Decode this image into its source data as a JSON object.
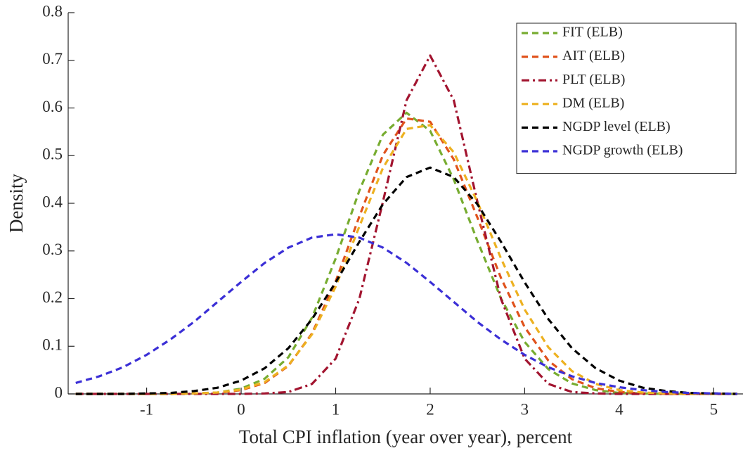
{
  "chart_data": {
    "type": "line",
    "xlabel": "Total CPI inflation (year over year), percent",
    "ylabel": "Density",
    "x": [
      -1.75,
      -1.5,
      -1.25,
      -1,
      -0.75,
      -0.5,
      -0.25,
      0,
      0.25,
      0.5,
      0.75,
      1,
      1.25,
      1.5,
      1.75,
      2,
      2.25,
      2.5,
      2.75,
      3,
      3.25,
      3.5,
      3.75,
      4,
      4.25,
      4.5,
      4.75,
      5,
      5.25
    ],
    "series": [
      {
        "name": "FIT (ELB)",
        "color": "#77ac30",
        "dash": "dashed",
        "values": [
          0,
          0,
          0,
          0,
          0,
          0.001,
          0.003,
          0.011,
          0.032,
          0.077,
          0.16,
          0.284,
          0.426,
          0.544,
          0.59,
          0.552,
          0.45,
          0.321,
          0.2,
          0.109,
          0.052,
          0.022,
          0.008,
          0.002,
          0.001,
          0,
          0,
          0,
          0
        ]
      },
      {
        "name": "AIT (ELB)",
        "color": "#e0521c",
        "dash": "dashed",
        "values": [
          0,
          0,
          0,
          0,
          0,
          0.001,
          0.002,
          0.008,
          0.023,
          0.059,
          0.127,
          0.236,
          0.372,
          0.501,
          0.578,
          0.571,
          0.492,
          0.37,
          0.243,
          0.14,
          0.07,
          0.031,
          0.012,
          0.004,
          0.001,
          0,
          0,
          0,
          0
        ]
      },
      {
        "name": "PLT (ELB)",
        "color": "#a2142f",
        "dash": "dashdot",
        "values": [
          0,
          0,
          0,
          0,
          0,
          0,
          0,
          0,
          0.001,
          0.004,
          0.021,
          0.074,
          0.199,
          0.403,
          0.616,
          0.71,
          0.616,
          0.403,
          0.199,
          0.074,
          0.021,
          0.004,
          0.001,
          0,
          0,
          0,
          0,
          0,
          0
        ]
      },
      {
        "name": "DM (ELB)",
        "color": "#edb120",
        "dash": "dashed",
        "values": [
          0,
          0,
          0,
          0,
          0,
          0.001,
          0.003,
          0.009,
          0.025,
          0.06,
          0.125,
          0.225,
          0.351,
          0.474,
          0.556,
          0.564,
          0.507,
          0.403,
          0.284,
          0.177,
          0.098,
          0.048,
          0.021,
          0.008,
          0.003,
          0.001,
          0,
          0,
          0
        ]
      },
      {
        "name": "NGDP level (ELB)",
        "color": "#000000",
        "dash": "dashed",
        "values": [
          0,
          0,
          0,
          0.001,
          0.002,
          0.006,
          0.013,
          0.028,
          0.054,
          0.096,
          0.157,
          0.234,
          0.319,
          0.398,
          0.455,
          0.475,
          0.455,
          0.398,
          0.319,
          0.234,
          0.157,
          0.096,
          0.054,
          0.028,
          0.013,
          0.006,
          0.002,
          0.001,
          0
        ]
      },
      {
        "name": "NGDP growth (ELB)",
        "color": "#3b2fd6",
        "dash": "dashed",
        "values": [
          0.023,
          0.037,
          0.056,
          0.082,
          0.114,
          0.151,
          0.193,
          0.235,
          0.275,
          0.307,
          0.328,
          0.335,
          0.328,
          0.307,
          0.275,
          0.235,
          0.193,
          0.151,
          0.114,
          0.082,
          0.056,
          0.037,
          0.023,
          0.014,
          0.008,
          0.004,
          0.002,
          0.001,
          0
        ]
      }
    ],
    "xlim": [
      -1.83,
      5.31
    ],
    "ylim": [
      0,
      0.8
    ],
    "xticks": [
      -1,
      0,
      1,
      2,
      3,
      4,
      5
    ],
    "yticks": [
      0,
      0.1,
      0.2,
      0.3,
      0.4,
      0.5,
      0.6,
      0.7,
      0.8
    ],
    "grid": false,
    "legend": "upper right"
  }
}
